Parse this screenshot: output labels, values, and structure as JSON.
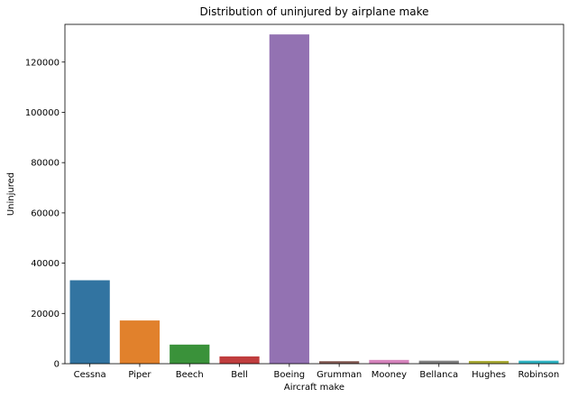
{
  "chart_data": {
    "type": "bar",
    "title": "Distribution of uninjured by airplane make",
    "xlabel": "Aircraft make",
    "ylabel": "Uninjured",
    "categories": [
      "Cessna",
      "Piper",
      "Beech",
      "Bell",
      "Boeing",
      "Grumman",
      "Mooney",
      "Bellanca",
      "Hughes",
      "Robinson"
    ],
    "values": [
      33200,
      17200,
      7600,
      2900,
      131000,
      1000,
      1500,
      1200,
      1100,
      1200
    ],
    "colors": [
      "#3274a1",
      "#e1812c",
      "#3a923a",
      "#c03d3e",
      "#9372b2",
      "#845b53",
      "#d684bd",
      "#7f7f7f",
      "#a9aa35",
      "#2eb2c1"
    ],
    "ylim": [
      0,
      135000
    ],
    "yticks": [
      0,
      20000,
      40000,
      60000,
      80000,
      100000,
      120000
    ],
    "grid": false,
    "legend": "none"
  }
}
